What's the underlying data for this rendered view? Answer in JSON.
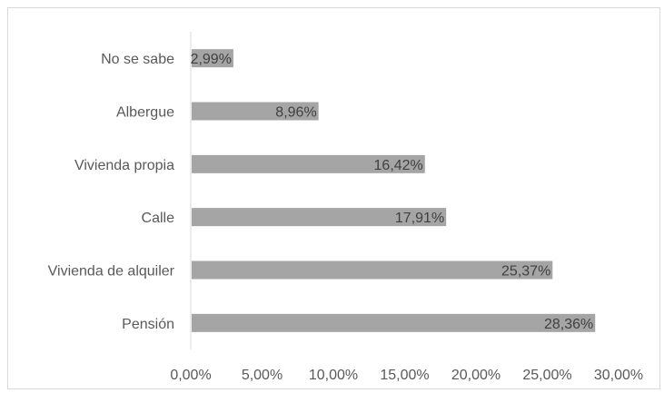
{
  "chart_data": {
    "type": "bar",
    "orientation": "horizontal",
    "categories": [
      "Pensión",
      "Vivienda de alquiler",
      "Calle",
      "Vivienda propia",
      "Albergue",
      "No se sabe"
    ],
    "values": [
      28.36,
      25.37,
      17.91,
      16.42,
      8.96,
      2.99
    ],
    "data_labels": [
      "28,36%",
      "25,37%",
      "17,91%",
      "16,42%",
      "8,96%",
      "2,99%"
    ],
    "x_ticks": [
      "0,00%",
      "5,00%",
      "10,00%",
      "15,00%",
      "20,00%",
      "25,00%",
      "30,00%"
    ],
    "xlim": [
      0,
      30
    ],
    "title": "",
    "xlabel": "",
    "ylabel": "",
    "grid": false,
    "legend": "none",
    "bar_color": "#a5a5a5",
    "axis_color": "#d9d9d9",
    "text_color": "#595959"
  }
}
